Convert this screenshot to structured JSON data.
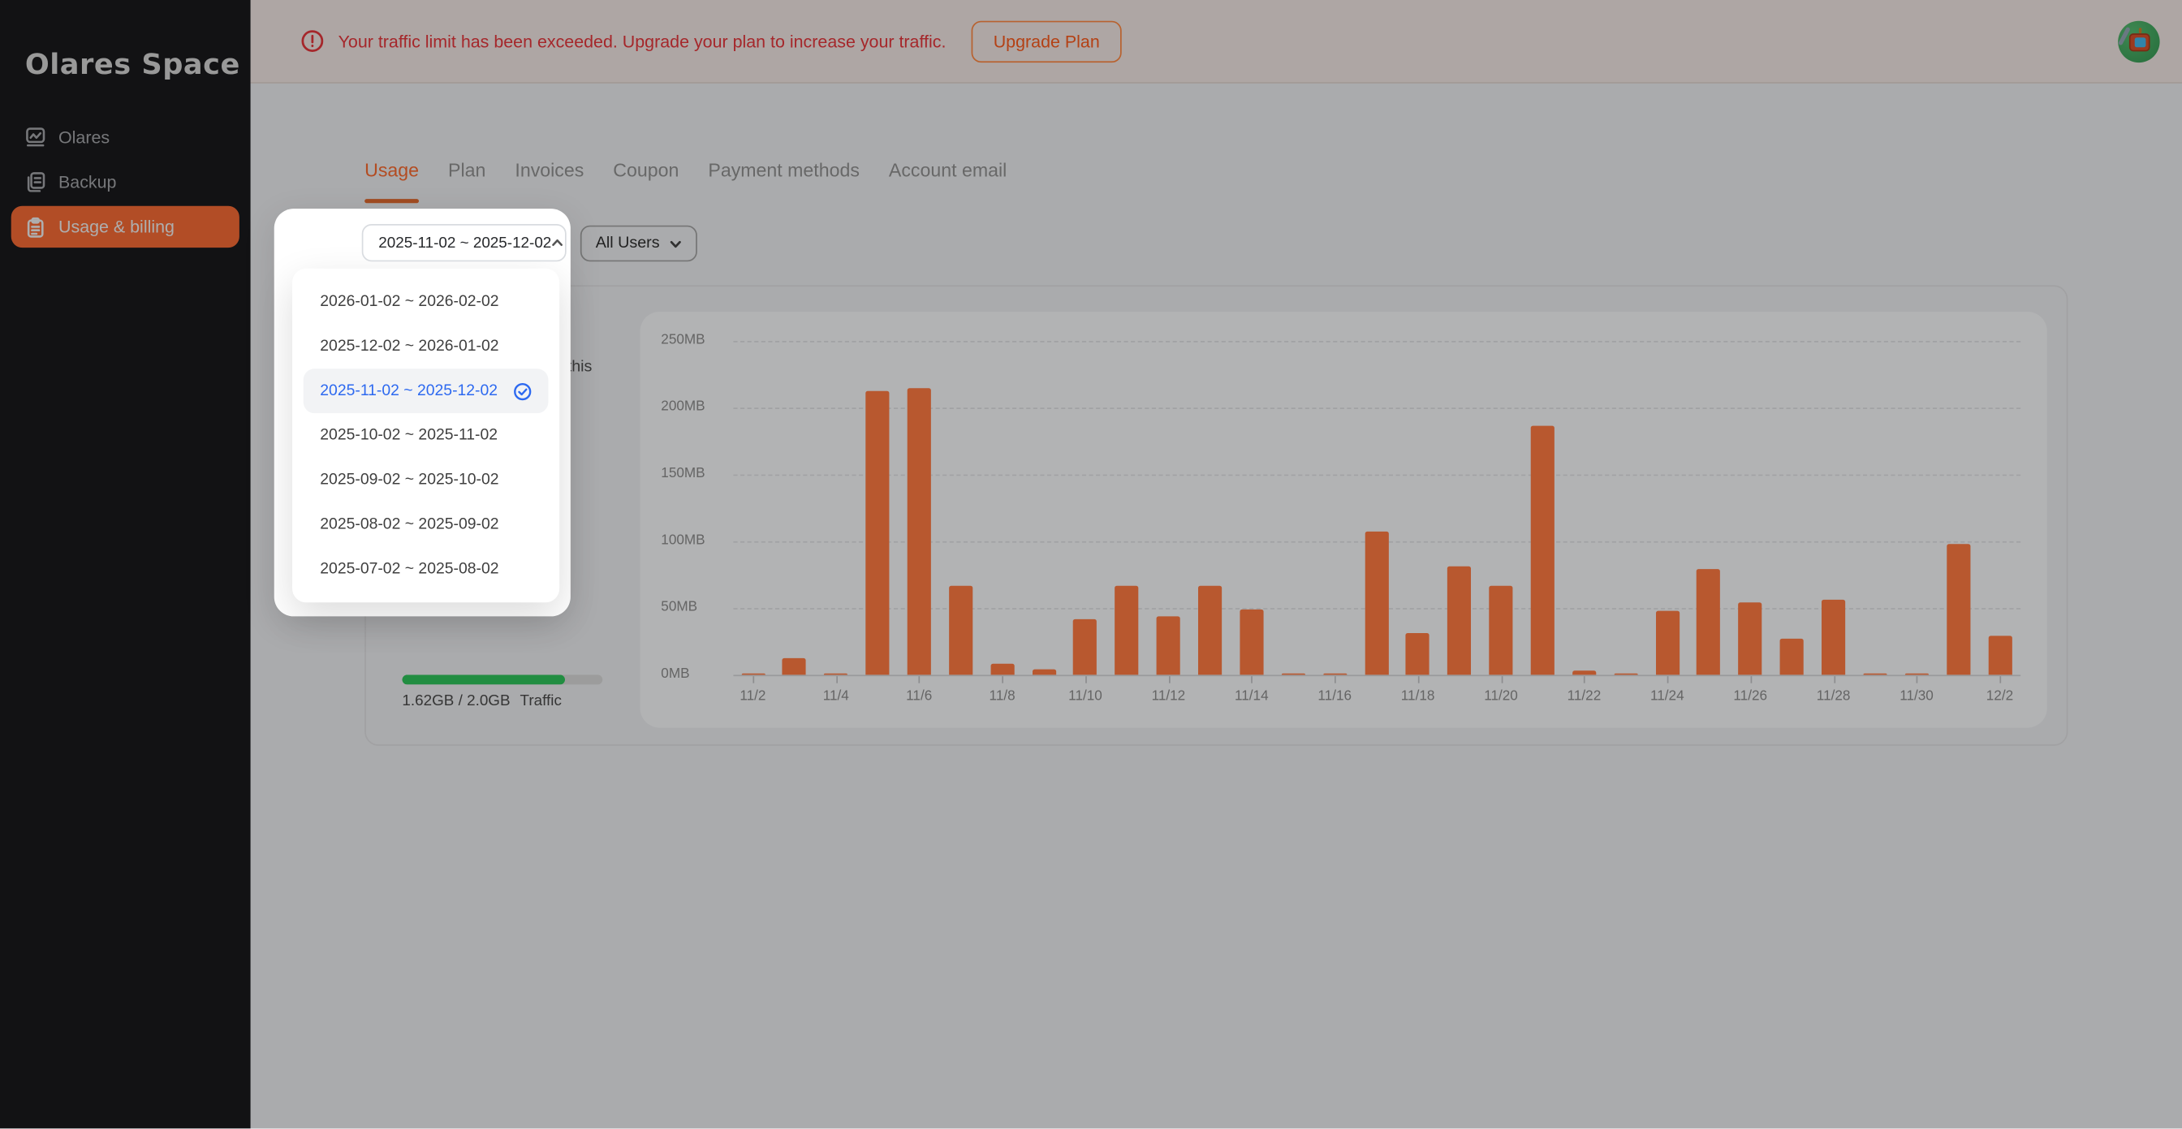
{
  "app": {
    "title": "Olares Space"
  },
  "colors": {
    "accent": "#f96a30",
    "bar": "#ff7a42",
    "banner_red": "#e5363c",
    "progress_green": "#2ec45a",
    "selected_blue": "#2d69f0",
    "sidebar_bg": "#19191c"
  },
  "sidebar": {
    "logo": "Olares Space",
    "items": [
      {
        "label": "Olares",
        "icon": "monitor-chart-icon",
        "active": false
      },
      {
        "label": "Backup",
        "icon": "copy-docs-icon",
        "active": false
      },
      {
        "label": "Usage & billing",
        "icon": "clipboard-icon",
        "active": true
      }
    ]
  },
  "banner": {
    "icon": "alert-circle-icon",
    "message": "Your traffic limit has been exceeded. Upgrade your plan to increase your traffic.",
    "button_label": "Upgrade Plan"
  },
  "header": {
    "avatar_icon": "robot-avatar"
  },
  "tabs": {
    "items": [
      {
        "label": "Usage",
        "active": true
      },
      {
        "label": "Plan",
        "active": false
      },
      {
        "label": "Invoices",
        "active": false
      },
      {
        "label": "Coupon",
        "active": false
      },
      {
        "label": "Payment methods",
        "active": false
      },
      {
        "label": "Account email",
        "active": false
      }
    ]
  },
  "filters": {
    "date_range": {
      "value": "2025-11-02 ~ 2025-12-02",
      "state": "open",
      "chevron": "chevron-up-icon"
    },
    "user_filter": {
      "value": "All Users",
      "chevron": "chevron-down-icon"
    }
  },
  "date_dropdown": {
    "selected_index": 2,
    "selected_icon": "check-circle-icon",
    "options": [
      "2026-01-02 ~ 2026-02-02",
      "2025-12-02 ~ 2026-01-02",
      "2025-11-02 ~ 2025-12-02",
      "2025-10-02 ~ 2025-11-02",
      "2025-09-02 ~ 2025-10-02",
      "2025-08-02 ~ 2025-09-02",
      "2025-07-02 ~ 2025-08-02"
    ]
  },
  "usage_card": {
    "partial_text": "d this",
    "quota_text": "1.62GB / 2.0GB",
    "quota_label": "Traffic",
    "progress_percent": 81
  },
  "chart_data": {
    "type": "bar",
    "unit": "MB",
    "categories": [
      "11/2",
      "11/3",
      "11/4",
      "11/5",
      "11/6",
      "11/7",
      "11/8",
      "11/9",
      "11/10",
      "11/11",
      "11/12",
      "11/13",
      "11/14",
      "11/15",
      "11/16",
      "11/17",
      "11/18",
      "11/19",
      "11/20",
      "11/21",
      "11/22",
      "11/23",
      "11/24",
      "11/25",
      "11/26",
      "11/27",
      "11/28",
      "11/29",
      "11/30",
      "12/1",
      "12/2"
    ],
    "values": [
      1.5,
      12,
      1.5,
      213,
      215,
      67,
      8,
      4,
      42,
      67,
      44,
      67,
      49,
      1,
      1.5,
      107,
      31,
      81,
      67,
      186,
      3,
      1,
      48,
      79,
      54,
      27,
      56,
      1,
      1,
      98,
      29
    ],
    "x_tick_labels": [
      "11/2",
      "11/4",
      "11/6",
      "11/8",
      "11/10",
      "11/12",
      "11/14",
      "11/16",
      "11/18",
      "11/20",
      "11/22",
      "11/24",
      "11/26",
      "11/28",
      "11/30",
      "12/2"
    ],
    "y_tick_labels": [
      "0MB",
      "50MB",
      "100MB",
      "150MB",
      "200MB",
      "250MB"
    ],
    "ylim": [
      0,
      250
    ],
    "grid": "horizontal-dashed",
    "bar_color": "#ff7a42",
    "legend": "none"
  }
}
